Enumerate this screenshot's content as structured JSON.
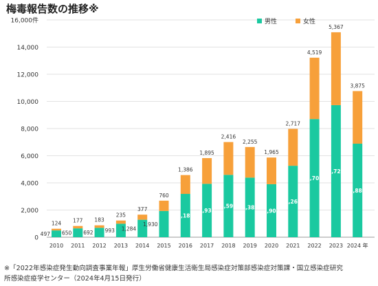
{
  "page": {
    "title": "梅毒報告数の推移※",
    "footnote_line1": "※「2022年感染症発生動向調査事業年報」厚生労働省健康生活衛生局感染症対策部感染症対策課・国立感染症研究",
    "footnote_line2": "所感染症疫学センター（2024年4月15日発行）"
  },
  "colors": {
    "male": "#1ac9a0",
    "female": "#f7a03a",
    "label_on_male": "#ffffff",
    "label": "#333333"
  },
  "chart_data": {
    "type": "bar",
    "stacked": true,
    "title": "梅毒報告数の推移※",
    "categories": [
      "2010",
      "2011",
      "2012",
      "2013",
      "2014",
      "2015",
      "2016",
      "2017",
      "2018",
      "2019",
      "2020",
      "2021",
      "2022",
      "2023",
      "2024 年"
    ],
    "series": [
      {
        "name": "男性",
        "values": [
          497,
          650,
          692,
          993,
          1284,
          1930,
          3189,
          3931,
          4591,
          4387,
          3902,
          5261,
          8701,
          9725,
          6886
        ]
      },
      {
        "name": "女性",
        "values": [
          124,
          177,
          183,
          235,
          377,
          760,
          1386,
          1895,
          2416,
          2255,
          1965,
          2717,
          4519,
          5367,
          3875
        ]
      }
    ],
    "ylim": [
      0,
      16000
    ],
    "yticks": [
      0,
      2000,
      4000,
      6000,
      8000,
      10000,
      12000,
      14000,
      16000
    ],
    "ytick_labels": [
      "0",
      "2,000",
      "4,000",
      "6,000",
      "8,000",
      "10,000",
      "12,000",
      "14,000",
      "16,000件"
    ],
    "grid": true,
    "legend": "top-right"
  }
}
